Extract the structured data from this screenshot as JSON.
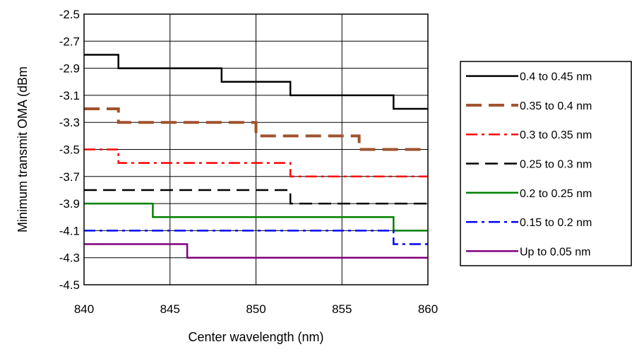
{
  "chart_data": {
    "type": "line",
    "title": "",
    "xlabel": "Center wavelength (nm)",
    "ylabel": "Minimum transmit OMA (dBm",
    "xlim": [
      840,
      860
    ],
    "ylim": [
      -4.5,
      -2.5
    ],
    "x_ticks": [
      "840",
      "845",
      "850",
      "855",
      "860"
    ],
    "y_ticks": [
      "-2.5",
      "-2.7",
      "-2.9",
      "-3.1",
      "-3.3",
      "-3.5",
      "-3.7",
      "-3.9",
      "-4.1",
      "-4.3",
      "-4.5"
    ],
    "x_tick_values": [
      840,
      845,
      850,
      855,
      860
    ],
    "y_tick_values": [
      -2.5,
      -2.7,
      -2.9,
      -3.1,
      -3.3,
      -3.5,
      -3.7,
      -3.9,
      -4.1,
      -4.3,
      -4.5
    ],
    "grid": true,
    "legend_position": "right",
    "step_style": "step-after",
    "series": [
      {
        "name": "0.4 to 0.45 nm",
        "color": "#000000",
        "dash": "solid",
        "width": 2.5,
        "points": [
          [
            840,
            -2.8
          ],
          [
            842,
            -2.9
          ],
          [
            848,
            -3.0
          ],
          [
            852,
            -3.1
          ],
          [
            858,
            -3.2
          ],
          [
            860,
            -3.2
          ]
        ]
      },
      {
        "name": "0.35 to 0.4 nm",
        "color": "#a0522d",
        "dash": "longdash",
        "width": 4,
        "points": [
          [
            840,
            -3.2
          ],
          [
            842,
            -3.3
          ],
          [
            850,
            -3.4
          ],
          [
            856,
            -3.5
          ],
          [
            860,
            -3.5
          ]
        ]
      },
      {
        "name": "0.3 to 0.35 nm",
        "color": "#ff0000",
        "dash": "dashdot",
        "width": 2.5,
        "points": [
          [
            840,
            -3.5
          ],
          [
            842,
            -3.6
          ],
          [
            852,
            -3.7
          ],
          [
            860,
            -3.7
          ]
        ]
      },
      {
        "name": "0.25 to 0.3 nm",
        "color": "#000000",
        "dash": "dash",
        "width": 2.5,
        "points": [
          [
            840,
            -3.8
          ],
          [
            852,
            -3.9
          ],
          [
            860,
            -3.9
          ]
        ]
      },
      {
        "name": "0.2 to 0.25 nm",
        "color": "#008000",
        "dash": "solid",
        "width": 2.5,
        "points": [
          [
            840,
            -3.9
          ],
          [
            844,
            -4.0
          ],
          [
            858,
            -4.1
          ],
          [
            860,
            -4.1
          ]
        ]
      },
      {
        "name": "0.15 to 0.2 nm",
        "color": "#0000ff",
        "dash": "dashdot",
        "width": 2.5,
        "points": [
          [
            840,
            -4.1
          ],
          [
            858,
            -4.2
          ],
          [
            860,
            -4.2
          ]
        ]
      },
      {
        "name": "Up to 0.05 nm",
        "color": "#800080",
        "dash": "solid",
        "width": 2.5,
        "points": [
          [
            840,
            -4.2
          ],
          [
            846,
            -4.3
          ],
          [
            860,
            -4.3
          ]
        ]
      }
    ]
  }
}
